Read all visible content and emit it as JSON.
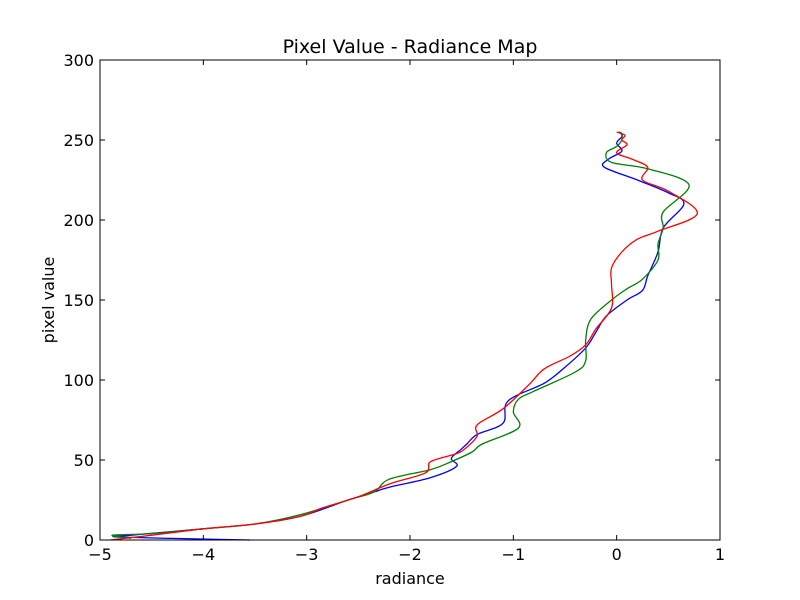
{
  "chart_data": {
    "type": "line",
    "title": "Pixel Value - Radiance Map",
    "xlabel": "radiance",
    "ylabel": "pixel value",
    "xlim": [
      -5,
      1
    ],
    "ylim": [
      0,
      300
    ],
    "xticks": [
      -5,
      -4,
      -3,
      -2,
      -1,
      0,
      1
    ],
    "yticks": [
      0,
      50,
      100,
      150,
      200,
      250,
      300
    ],
    "xtick_labels": [
      "−5",
      "−4",
      "−3",
      "−2",
      "−1",
      "0",
      "1"
    ],
    "ytick_labels": [
      "0",
      "50",
      "100",
      "150",
      "200",
      "250",
      "300"
    ],
    "grid": false,
    "series": [
      {
        "color": "#0000ff",
        "points": [
          [
            -3.55,
            0
          ],
          [
            -4.3,
            1
          ],
          [
            -4.85,
            2
          ],
          [
            -4.7,
            3
          ],
          [
            -4.0,
            7
          ],
          [
            -3.5,
            10
          ],
          [
            -3.05,
            15
          ],
          [
            -2.6,
            25
          ],
          [
            -2.35,
            30
          ],
          [
            -2.2,
            33
          ],
          [
            -1.8,
            39
          ],
          [
            -1.55,
            46
          ],
          [
            -1.6,
            51
          ],
          [
            -1.5,
            57
          ],
          [
            -1.45,
            60
          ],
          [
            -1.35,
            66
          ],
          [
            -1.1,
            73
          ],
          [
            -1.05,
            87
          ],
          [
            -0.7,
            98
          ],
          [
            -0.5,
            108
          ],
          [
            -0.3,
            120
          ],
          [
            -0.2,
            130
          ],
          [
            -0.1,
            140
          ],
          [
            0.1,
            150
          ],
          [
            0.25,
            156
          ],
          [
            0.3,
            165
          ],
          [
            0.4,
            180
          ],
          [
            0.45,
            195
          ],
          [
            0.65,
            210
          ],
          [
            0.5,
            217
          ],
          [
            0.2,
            225
          ],
          [
            -0.12,
            233
          ],
          [
            -0.08,
            238
          ],
          [
            0.05,
            243
          ],
          [
            0.0,
            248
          ],
          [
            0.05,
            252
          ],
          [
            0.05,
            254
          ],
          [
            0.02,
            255
          ]
        ]
      },
      {
        "color": "#008000",
        "points": [
          [
            -4.7,
            1
          ],
          [
            -4.88,
            3
          ],
          [
            -4.5,
            4
          ],
          [
            -4.0,
            7
          ],
          [
            -3.5,
            10
          ],
          [
            -3.05,
            16
          ],
          [
            -2.6,
            25
          ],
          [
            -2.35,
            30
          ],
          [
            -2.2,
            38
          ],
          [
            -1.8,
            44
          ],
          [
            -1.6,
            49
          ],
          [
            -1.4,
            55
          ],
          [
            -1.3,
            60
          ],
          [
            -0.95,
            70
          ],
          [
            -1.0,
            80
          ],
          [
            -0.95,
            88
          ],
          [
            -0.8,
            93
          ],
          [
            -0.4,
            105
          ],
          [
            -0.3,
            112
          ],
          [
            -0.3,
            125
          ],
          [
            -0.25,
            138
          ],
          [
            -0.05,
            150
          ],
          [
            0.1,
            157
          ],
          [
            0.25,
            163
          ],
          [
            0.4,
            175
          ],
          [
            0.4,
            185
          ],
          [
            0.45,
            195
          ],
          [
            0.45,
            205
          ],
          [
            0.7,
            222
          ],
          [
            0.3,
            232
          ],
          [
            -0.05,
            236
          ],
          [
            -0.1,
            242
          ],
          [
            0.0,
            246
          ],
          [
            0.05,
            250
          ],
          [
            0.05,
            253
          ],
          [
            0.03,
            255
          ]
        ]
      },
      {
        "color": "#ff0000",
        "points": [
          [
            -4.9,
            0
          ],
          [
            -4.5,
            3
          ],
          [
            -4.0,
            7
          ],
          [
            -3.5,
            10
          ],
          [
            -3.05,
            15
          ],
          [
            -2.85,
            20
          ],
          [
            -2.5,
            27
          ],
          [
            -2.2,
            35
          ],
          [
            -1.85,
            42
          ],
          [
            -1.8,
            49
          ],
          [
            -1.55,
            54
          ],
          [
            -1.45,
            58
          ],
          [
            -1.35,
            65
          ],
          [
            -1.35,
            72
          ],
          [
            -1.1,
            82
          ],
          [
            -0.85,
            97
          ],
          [
            -0.7,
            107
          ],
          [
            -0.45,
            115
          ],
          [
            -0.3,
            122
          ],
          [
            -0.2,
            132
          ],
          [
            -0.05,
            145
          ],
          [
            -0.05,
            160
          ],
          [
            -0.05,
            170
          ],
          [
            0.05,
            180
          ],
          [
            0.2,
            188
          ],
          [
            0.4,
            193
          ],
          [
            0.78,
            204
          ],
          [
            0.5,
            218
          ],
          [
            0.25,
            225
          ],
          [
            0.3,
            233
          ],
          [
            0.15,
            238
          ],
          [
            0.0,
            242
          ],
          [
            0.1,
            247
          ],
          [
            0.05,
            250
          ],
          [
            0.08,
            253
          ],
          [
            0.0,
            255
          ]
        ]
      }
    ]
  }
}
